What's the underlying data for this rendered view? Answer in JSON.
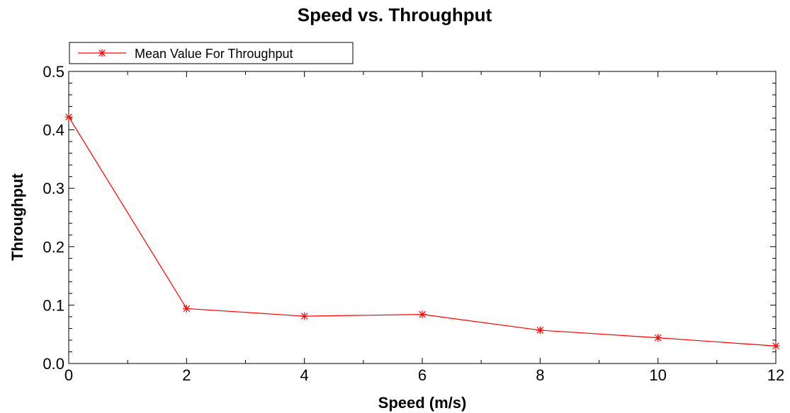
{
  "chart_data": {
    "type": "line",
    "title": "Speed vs. Throughput",
    "xlabel": "Speed (m/s)",
    "ylabel": "Throughput",
    "xlim": [
      0,
      12
    ],
    "ylim": [
      0,
      0.5
    ],
    "x_ticks": [
      "0",
      "2",
      "4",
      "6",
      "8",
      "10",
      "12"
    ],
    "y_ticks": [
      "0.0",
      "0.1",
      "0.2",
      "0.3",
      "0.4",
      "0.5"
    ],
    "grid": false,
    "legend_position": "top-left",
    "series": [
      {
        "name": "Mean Value For Throughput",
        "color": "#ff0000",
        "marker": "asterisk",
        "x": [
          0,
          2,
          4,
          6,
          8,
          10,
          12
        ],
        "y": [
          0.422,
          0.094,
          0.081,
          0.084,
          0.057,
          0.044,
          0.03
        ]
      }
    ]
  }
}
